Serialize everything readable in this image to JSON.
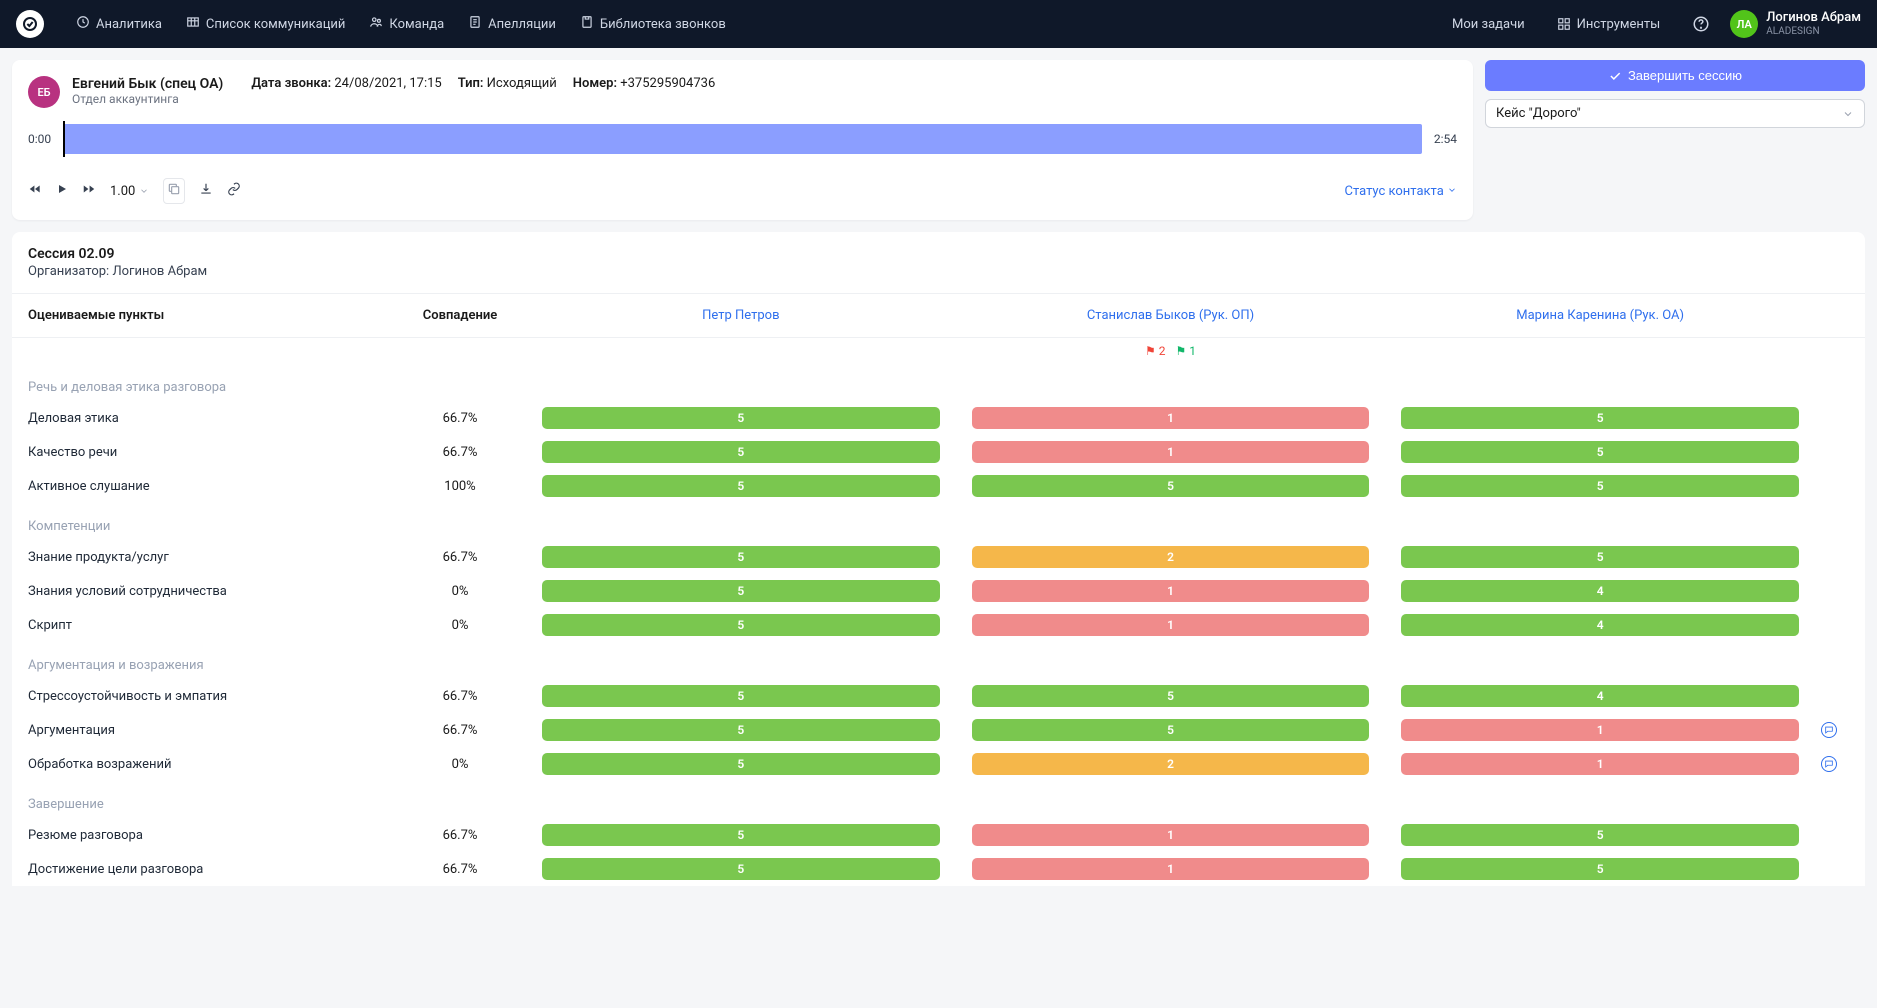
{
  "colors": {
    "score_green": "#7ac74f",
    "score_yellow": "#f5b74a",
    "score_red": "#f08b8b",
    "link_blue": "#2f6fed",
    "primary_btn": "#6b7cff"
  },
  "nav": {
    "items": [
      {
        "label": "Аналитика"
      },
      {
        "label": "Список коммуникаций"
      },
      {
        "label": "Команда"
      },
      {
        "label": "Апелляции"
      },
      {
        "label": "Библиотека звонков"
      }
    ],
    "my_tasks": "Мои задачи",
    "tools": "Инструменты",
    "user_name": "Логинов Абрам",
    "user_org": "ALADESIGN",
    "user_initials": "ЛА"
  },
  "call": {
    "avatar_initials": "ЕБ",
    "agent_name": "Евгений Бык (спец ОА)",
    "department": "Отдел аккаунтинга",
    "date_label": "Дата звонка:",
    "date_value": "24/08/2021, 17:15",
    "type_label": "Тип:",
    "type_value": "Исходящий",
    "number_label": "Номер:",
    "number_value": "+375295904736",
    "time_start": "0:00",
    "time_end": "2:54",
    "speed": "1.00",
    "contact_status": "Статус контакта"
  },
  "side": {
    "end_session": "Завершить сессию",
    "case_value": "Кейс \"Дорого\""
  },
  "session": {
    "title": "Сессия 02.09",
    "organizer_label": "Организатор:",
    "organizer_value": "Логинов Абрам"
  },
  "eval": {
    "headers": {
      "items": "Оцениваемые пункты",
      "match": "Совпадение",
      "p1": "Петр Петров",
      "p2": "Станислав Быков (Рук. ОП)",
      "p3": "Марина Каренина (Рук. ОА)"
    },
    "flags": {
      "red": "2",
      "green": "1"
    },
    "sections": [
      {
        "label": "Речь и деловая этика разговора",
        "rows": [
          {
            "name": "Деловая этика",
            "match": "66.7%",
            "s1": {
              "v": "5",
              "c": "green"
            },
            "s2": {
              "v": "1",
              "c": "red"
            },
            "s3": {
              "v": "5",
              "c": "green"
            },
            "comment": false
          },
          {
            "name": "Качество речи",
            "match": "66.7%",
            "s1": {
              "v": "5",
              "c": "green"
            },
            "s2": {
              "v": "1",
              "c": "red"
            },
            "s3": {
              "v": "5",
              "c": "green"
            },
            "comment": false
          },
          {
            "name": "Активное слушание",
            "match": "100%",
            "s1": {
              "v": "5",
              "c": "green"
            },
            "s2": {
              "v": "5",
              "c": "green"
            },
            "s3": {
              "v": "5",
              "c": "green"
            },
            "comment": false
          }
        ]
      },
      {
        "label": "Компетенции",
        "rows": [
          {
            "name": "Знание продукта/услуг",
            "match": "66.7%",
            "s1": {
              "v": "5",
              "c": "green"
            },
            "s2": {
              "v": "2",
              "c": "yellow"
            },
            "s3": {
              "v": "5",
              "c": "green"
            },
            "comment": false
          },
          {
            "name": "Знания условий сотрудничества",
            "match": "0%",
            "s1": {
              "v": "5",
              "c": "green"
            },
            "s2": {
              "v": "1",
              "c": "red"
            },
            "s3": {
              "v": "4",
              "c": "green"
            },
            "comment": false
          },
          {
            "name": "Скрипт",
            "match": "0%",
            "s1": {
              "v": "5",
              "c": "green"
            },
            "s2": {
              "v": "1",
              "c": "red"
            },
            "s3": {
              "v": "4",
              "c": "green"
            },
            "comment": false
          }
        ]
      },
      {
        "label": "Аргументация и возражения",
        "rows": [
          {
            "name": "Стрессоустойчивость и эмпатия",
            "match": "66.7%",
            "s1": {
              "v": "5",
              "c": "green"
            },
            "s2": {
              "v": "5",
              "c": "green"
            },
            "s3": {
              "v": "4",
              "c": "green"
            },
            "comment": false
          },
          {
            "name": "Аргументация",
            "match": "66.7%",
            "s1": {
              "v": "5",
              "c": "green"
            },
            "s2": {
              "v": "5",
              "c": "green"
            },
            "s3": {
              "v": "1",
              "c": "red"
            },
            "comment": true
          },
          {
            "name": "Обработка возражений",
            "match": "0%",
            "s1": {
              "v": "5",
              "c": "green"
            },
            "s2": {
              "v": "2",
              "c": "yellow"
            },
            "s3": {
              "v": "1",
              "c": "red"
            },
            "comment": true
          }
        ]
      },
      {
        "label": "Завершение",
        "rows": [
          {
            "name": "Резюме разговора",
            "match": "66.7%",
            "s1": {
              "v": "5",
              "c": "green"
            },
            "s2": {
              "v": "1",
              "c": "red"
            },
            "s3": {
              "v": "5",
              "c": "green"
            },
            "comment": false
          },
          {
            "name": "Достижение цели разговора",
            "match": "66.7%",
            "s1": {
              "v": "5",
              "c": "green"
            },
            "s2": {
              "v": "1",
              "c": "red"
            },
            "s3": {
              "v": "5",
              "c": "green"
            },
            "comment": false
          }
        ]
      }
    ]
  }
}
